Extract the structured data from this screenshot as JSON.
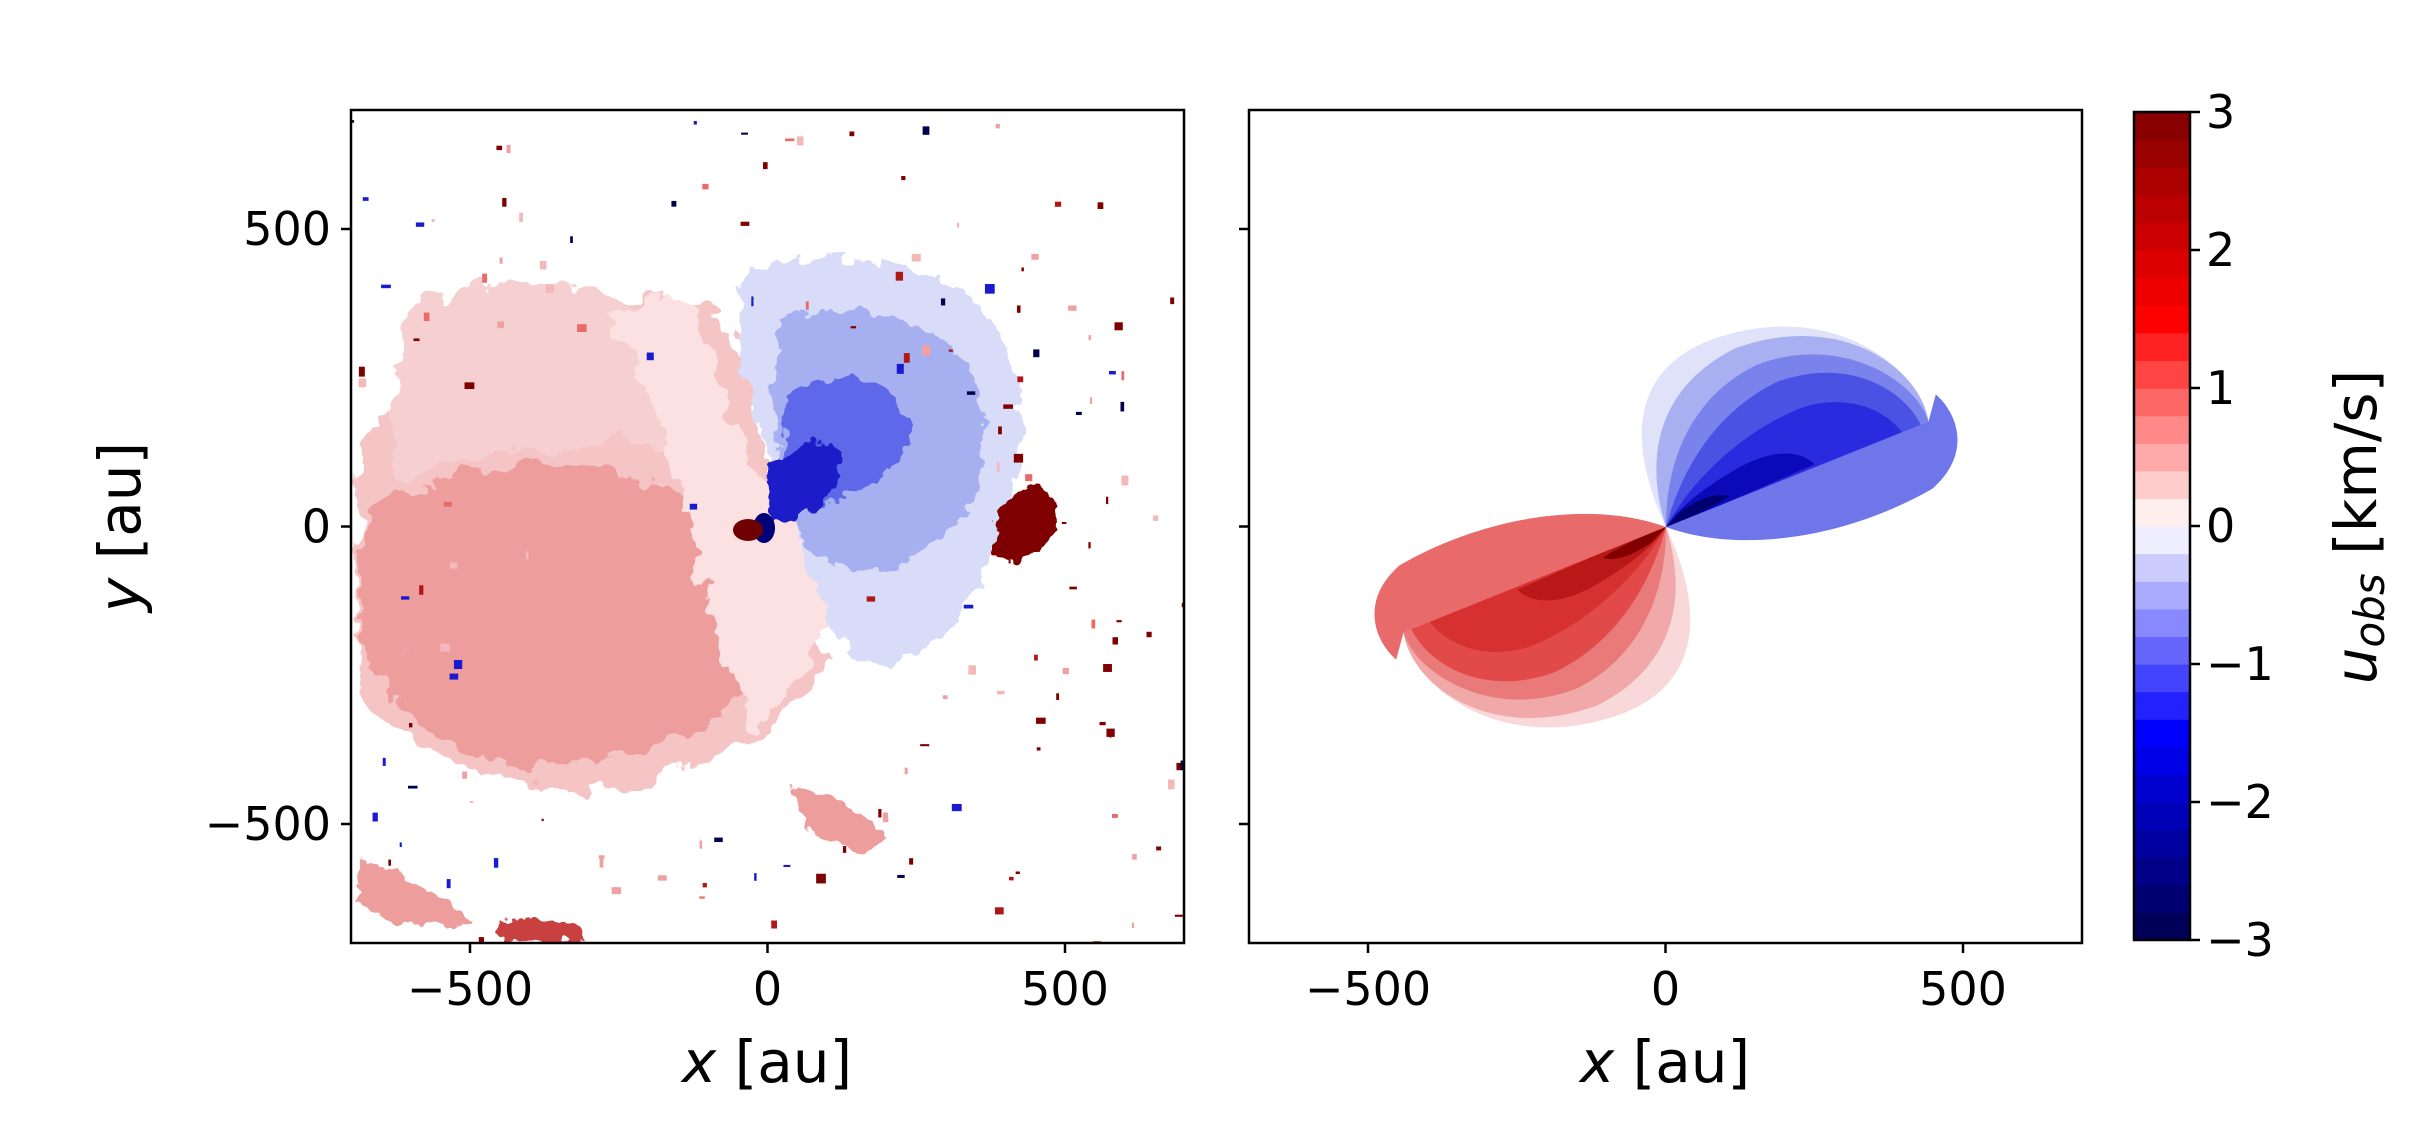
{
  "chart_data": [
    {
      "type": "heatmap",
      "panel": "left",
      "description_kind": "observed velocity map",
      "xlabel_var": "x",
      "xlabel_unit": " [au]",
      "ylabel_var": "y",
      "ylabel_unit": " [au]",
      "xlim": [
        -700,
        700
      ],
      "ylim": [
        -700,
        700
      ],
      "xticks": [
        -500,
        0,
        500
      ],
      "yticks": [
        -500,
        0,
        500
      ],
      "xtick_labels": [
        "−500",
        "0",
        "500"
      ],
      "ytick_labels": [
        "−500",
        "0",
        "500"
      ],
      "colormap": "seismic",
      "vmin": -3,
      "vmax": 3,
      "features": {
        "red_lobe_center": [
          -250,
          -80
        ],
        "blue_lobe_center": [
          200,
          200
        ],
        "peak_red_blob": [
          -30,
          0
        ],
        "peak_red_patch": [
          420,
          0
        ]
      }
    },
    {
      "type": "heatmap",
      "panel": "right",
      "description_kind": "model velocity map",
      "xlabel_var": "x",
      "xlabel_unit": " [au]",
      "xlim": [
        -700,
        700
      ],
      "ylim": [
        -700,
        700
      ],
      "xticks": [
        -500,
        0,
        500
      ],
      "xtick_labels": [
        "−500",
        "0",
        "500"
      ],
      "colormap": "seismic",
      "vmin": -3,
      "vmax": 3,
      "ellipse_major_axis_au": 480,
      "ellipse_minor_axis_au": 260,
      "position_angle_deg": 30
    }
  ],
  "colorbar": {
    "label_var": "u",
    "label_sub": "obs",
    "label_unit": " [km/s]",
    "ticks": [
      3,
      2,
      1,
      0,
      -1,
      -2,
      -3
    ],
    "tick_labels": [
      "3",
      "2",
      "1",
      "0",
      "−1",
      "−2",
      "−3"
    ],
    "vmin": -3,
    "vmax": 3,
    "levels": 30
  },
  "colors": {
    "negative_extreme": "#00004c",
    "negative_mid": "#0000ff",
    "zero": "#ffffff",
    "positive_mid": "#ff0000",
    "positive_extreme": "#7f0000"
  }
}
